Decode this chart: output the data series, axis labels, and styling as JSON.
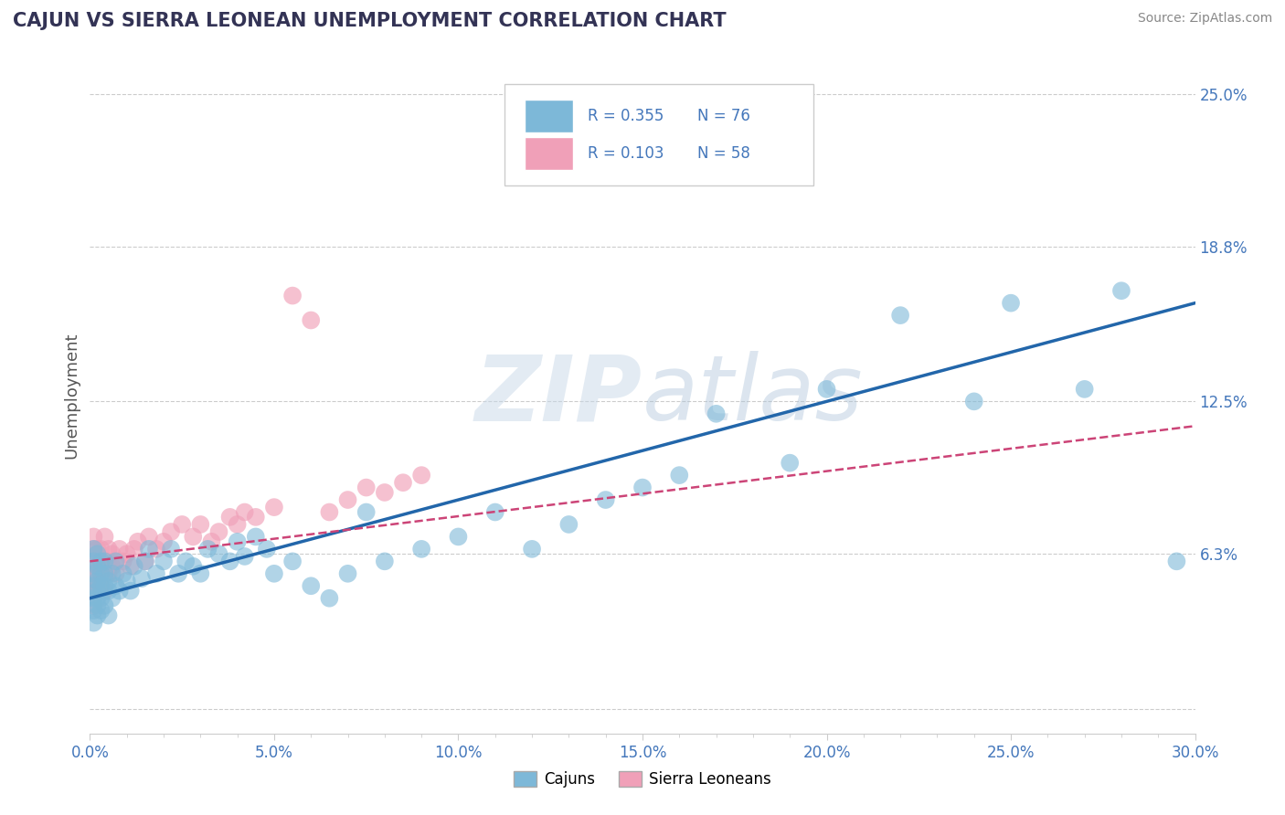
{
  "title": "CAJUN VS SIERRA LEONEAN UNEMPLOYMENT CORRELATION CHART",
  "source_text": "Source: ZipAtlas.com",
  "ylabel": "Unemployment",
  "xlim": [
    0.0,
    0.3
  ],
  "ylim": [
    -0.01,
    0.265
  ],
  "yticks": [
    0.063,
    0.125,
    0.188,
    0.25
  ],
  "ytick_labels": [
    "6.3%",
    "12.5%",
    "18.8%",
    "25.0%"
  ],
  "xtick_labels": [
    "0.0%",
    "",
    "",
    "",
    "",
    "5.0%",
    "",
    "",
    "",
    "",
    "10.0%",
    "",
    "",
    "",
    "",
    "15.0%",
    "",
    "",
    "",
    "",
    "20.0%",
    "",
    "",
    "",
    "",
    "25.0%",
    "",
    "",
    "",
    "",
    "30.0%"
  ],
  "cajun_color": "#7db8d8",
  "sierra_color": "#f0a0b8",
  "cajun_line_color": "#2266aa",
  "sierra_line_color": "#cc4477",
  "background_color": "#ffffff",
  "grid_color": "#cccccc",
  "title_color": "#333333",
  "axis_label_color": "#555555",
  "tick_label_color": "#4477bb",
  "R_cajun": 0.355,
  "N_cajun": 76,
  "R_sierra": 0.103,
  "N_sierra": 58,
  "watermark": "ZIPatlas",
  "legend_labels": [
    "Cajuns",
    "Sierra Leoneans"
  ],
  "cajun_x": [
    0.001,
    0.001,
    0.001,
    0.001,
    0.001,
    0.001,
    0.001,
    0.002,
    0.002,
    0.002,
    0.002,
    0.002,
    0.002,
    0.002,
    0.003,
    0.003,
    0.003,
    0.003,
    0.003,
    0.004,
    0.004,
    0.004,
    0.004,
    0.005,
    0.005,
    0.005,
    0.006,
    0.006,
    0.007,
    0.007,
    0.008,
    0.009,
    0.01,
    0.011,
    0.012,
    0.014,
    0.015,
    0.016,
    0.018,
    0.02,
    0.022,
    0.024,
    0.026,
    0.028,
    0.03,
    0.032,
    0.035,
    0.038,
    0.04,
    0.042,
    0.045,
    0.048,
    0.05,
    0.055,
    0.06,
    0.065,
    0.07,
    0.075,
    0.08,
    0.09,
    0.1,
    0.11,
    0.12,
    0.13,
    0.14,
    0.15,
    0.16,
    0.17,
    0.19,
    0.2,
    0.22,
    0.24,
    0.25,
    0.27,
    0.28,
    0.295
  ],
  "cajun_y": [
    0.055,
    0.06,
    0.065,
    0.045,
    0.05,
    0.04,
    0.035,
    0.048,
    0.052,
    0.058,
    0.063,
    0.042,
    0.038,
    0.045,
    0.055,
    0.05,
    0.06,
    0.045,
    0.04,
    0.05,
    0.055,
    0.042,
    0.06,
    0.048,
    0.052,
    0.038,
    0.045,
    0.055,
    0.05,
    0.06,
    0.048,
    0.055,
    0.052,
    0.048,
    0.058,
    0.053,
    0.06,
    0.065,
    0.055,
    0.06,
    0.065,
    0.055,
    0.06,
    0.058,
    0.055,
    0.065,
    0.063,
    0.06,
    0.068,
    0.062,
    0.07,
    0.065,
    0.055,
    0.06,
    0.05,
    0.045,
    0.055,
    0.08,
    0.06,
    0.065,
    0.07,
    0.08,
    0.065,
    0.075,
    0.085,
    0.09,
    0.095,
    0.12,
    0.1,
    0.13,
    0.16,
    0.125,
    0.165,
    0.13,
    0.17,
    0.06
  ],
  "sierra_x": [
    0.001,
    0.001,
    0.001,
    0.001,
    0.001,
    0.001,
    0.001,
    0.001,
    0.002,
    0.002,
    0.002,
    0.002,
    0.002,
    0.002,
    0.003,
    0.003,
    0.003,
    0.003,
    0.004,
    0.004,
    0.004,
    0.004,
    0.005,
    0.005,
    0.005,
    0.006,
    0.006,
    0.007,
    0.007,
    0.008,
    0.009,
    0.01,
    0.011,
    0.012,
    0.013,
    0.015,
    0.016,
    0.018,
    0.02,
    0.022,
    0.025,
    0.028,
    0.03,
    0.033,
    0.035,
    0.038,
    0.04,
    0.042,
    0.045,
    0.05,
    0.055,
    0.06,
    0.065,
    0.07,
    0.075,
    0.08,
    0.085,
    0.09
  ],
  "sierra_y": [
    0.06,
    0.065,
    0.055,
    0.07,
    0.048,
    0.058,
    0.05,
    0.042,
    0.055,
    0.06,
    0.048,
    0.065,
    0.052,
    0.058,
    0.06,
    0.055,
    0.065,
    0.05,
    0.06,
    0.055,
    0.07,
    0.048,
    0.06,
    0.055,
    0.065,
    0.058,
    0.063,
    0.055,
    0.06,
    0.065,
    0.06,
    0.063,
    0.058,
    0.065,
    0.068,
    0.06,
    0.07,
    0.065,
    0.068,
    0.072,
    0.075,
    0.07,
    0.075,
    0.068,
    0.072,
    0.078,
    0.075,
    0.08,
    0.078,
    0.082,
    0.168,
    0.158,
    0.08,
    0.085,
    0.09,
    0.088,
    0.092,
    0.095
  ]
}
